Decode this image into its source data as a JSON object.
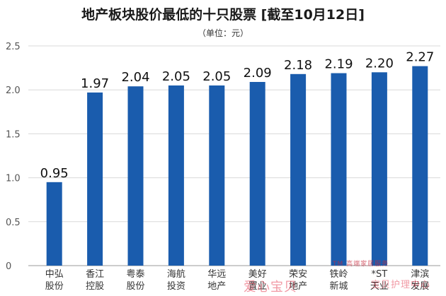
{
  "title": "地产板块股价最低的十只股票 [截至10月12日]",
  "subtitle": "（单位：元）",
  "colors": {
    "bar": "#1a5cad",
    "grid": "#d9d9d9",
    "axis": "#9a9a9a"
  },
  "chart_data": {
    "type": "bar",
    "title": "地产板块股价最低的十只股票 [截至10月12日]",
    "subtitle": "（单位：元）",
    "categories": [
      [
        "中弘",
        "股份"
      ],
      [
        "香江",
        "控股"
      ],
      [
        "粤泰",
        "股份"
      ],
      [
        "海航",
        "投资"
      ],
      [
        "华远",
        "地产"
      ],
      [
        "美好",
        "置业"
      ],
      [
        "荣安",
        "地产"
      ],
      [
        "铁岭",
        "新城"
      ],
      [
        "*ST",
        "天业"
      ],
      [
        "津滨",
        "发展"
      ]
    ],
    "values": [
      0.95,
      1.97,
      2.04,
      2.05,
      2.05,
      2.09,
      2.18,
      2.19,
      2.2,
      2.27
    ],
    "data_labels": [
      "0.95",
      "1.97",
      "2.04",
      "2.05",
      "2.05",
      "2.09",
      "2.18",
      "2.19",
      "2.20",
      "2.27"
    ],
    "yticks": [
      "0",
      "0.5",
      "1.0",
      "1.5",
      "2.0",
      "2.5"
    ],
    "ylim": [
      0,
      2.5
    ],
    "grid": true,
    "legend": "none"
  },
  "watermarks": [
    "爱心宝贝",
    "TM 高端家居服务",
    "宝贝护理中心"
  ]
}
